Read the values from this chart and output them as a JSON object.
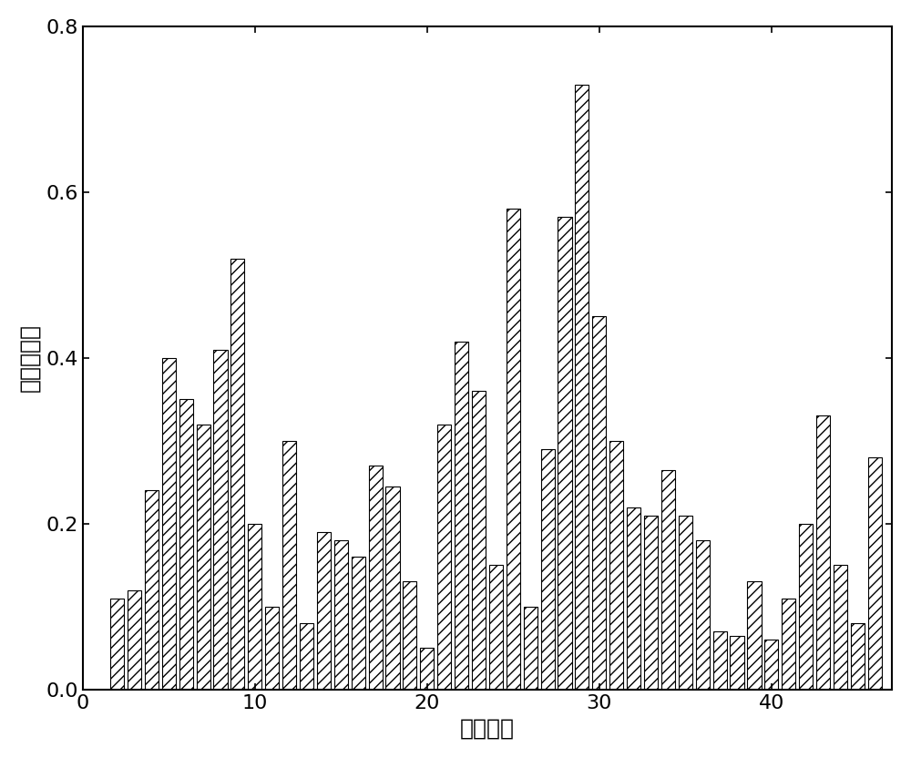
{
  "nodes": [
    2,
    3,
    4,
    5,
    6,
    7,
    8,
    9,
    10,
    11,
    12,
    13,
    14,
    15,
    16,
    17,
    18,
    19,
    20,
    21,
    22,
    23,
    24,
    25,
    26,
    27,
    28,
    29,
    30,
    31,
    32,
    33,
    34,
    35,
    36,
    37,
    38,
    39,
    40,
    41,
    42,
    43,
    44,
    45,
    46
  ],
  "values": [
    0.11,
    0.12,
    0.24,
    0.4,
    0.35,
    0.32,
    0.41,
    0.52,
    0.2,
    0.1,
    0.3,
    0.08,
    0.19,
    0.18,
    0.16,
    0.27,
    0.245,
    0.13,
    0.05,
    0.32,
    0.42,
    0.36,
    0.15,
    0.58,
    0.1,
    0.29,
    0.57,
    0.73,
    0.45,
    0.3,
    0.22,
    0.21,
    0.265,
    0.21,
    0.18,
    0.07,
    0.065,
    0.13,
    0.06,
    0.11,
    0.2,
    0.33,
    0.15,
    0.08,
    0.28
  ],
  "xlabel": "节点编号",
  "ylabel": "节点重要性",
  "xlim": [
    0,
    47
  ],
  "ylim": [
    0.0,
    0.8
  ],
  "yticks": [
    0.0,
    0.2,
    0.4,
    0.6,
    0.8
  ],
  "xticks": [
    0,
    10,
    20,
    30,
    40
  ],
  "bar_color": "white",
  "edge_color": "black",
  "background_color": "white",
  "xlabel_fontsize": 18,
  "ylabel_fontsize": 18,
  "tick_fontsize": 16,
  "bar_width": 0.8
}
